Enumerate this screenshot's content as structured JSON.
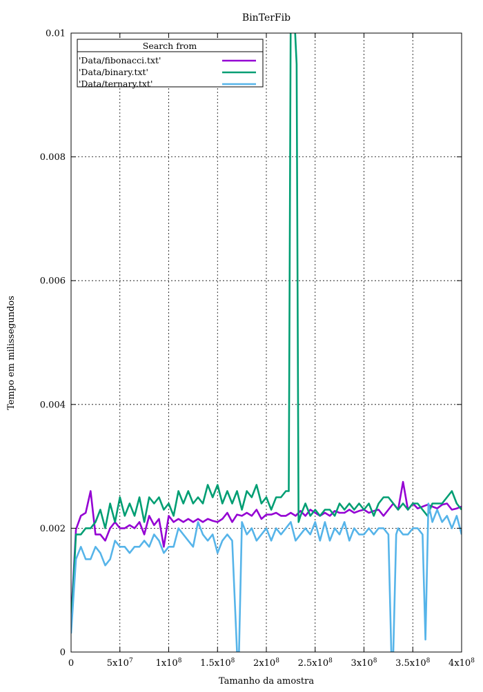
{
  "chart_data": {
    "type": "line",
    "title": "BinTerFib",
    "xlabel": "Tamanho da amostra",
    "ylabel": "Tempo em milissegundos",
    "xlim": [
      0,
      400000000
    ],
    "ylim": [
      0,
      0.01
    ],
    "grid": true,
    "legend_position": "top-left",
    "legend_title": "Search from",
    "x_ticks": [
      {
        "value": 0,
        "label": "0"
      },
      {
        "value": 50000000,
        "label": "5x10",
        "exp": "7"
      },
      {
        "value": 100000000,
        "label": "1x10",
        "exp": "8"
      },
      {
        "value": 150000000,
        "label": "1.5x10",
        "exp": "8"
      },
      {
        "value": 200000000,
        "label": "2x10",
        "exp": "8"
      },
      {
        "value": 250000000,
        "label": "2.5x10",
        "exp": "8"
      },
      {
        "value": 300000000,
        "label": "3x10",
        "exp": "8"
      },
      {
        "value": 350000000,
        "label": "3.5x10",
        "exp": "8"
      },
      {
        "value": 400000000,
        "label": "4x10",
        "exp": "8"
      }
    ],
    "y_ticks": [
      {
        "value": 0,
        "label": "0"
      },
      {
        "value": 0.002,
        "label": "0.002"
      },
      {
        "value": 0.004,
        "label": "0.004"
      },
      {
        "value": 0.006,
        "label": "0.006"
      },
      {
        "value": 0.008,
        "label": "0.008"
      },
      {
        "value": 0.01,
        "label": "0.01"
      }
    ],
    "series": [
      {
        "name": "'Data/fibonacci.txt'",
        "color": "#9400d3",
        "points": [
          [
            0,
            0.0005
          ],
          [
            5000000,
            0.00198
          ],
          [
            10000000,
            0.0022
          ],
          [
            15000000,
            0.00225
          ],
          [
            20000000,
            0.0026
          ],
          [
            25000000,
            0.0019
          ],
          [
            30000000,
            0.0019
          ],
          [
            35000000,
            0.0018
          ],
          [
            40000000,
            0.002
          ],
          [
            45000000,
            0.0021
          ],
          [
            50000000,
            0.002
          ],
          [
            55000000,
            0.002
          ],
          [
            60000000,
            0.00205
          ],
          [
            65000000,
            0.002
          ],
          [
            70000000,
            0.0021
          ],
          [
            75000000,
            0.0019
          ],
          [
            80000000,
            0.0022
          ],
          [
            85000000,
            0.00205
          ],
          [
            90000000,
            0.00215
          ],
          [
            95000000,
            0.0017
          ],
          [
            100000000,
            0.0022
          ],
          [
            105000000,
            0.0021
          ],
          [
            110000000,
            0.00215
          ],
          [
            115000000,
            0.0021
          ],
          [
            120000000,
            0.00215
          ],
          [
            125000000,
            0.0021
          ],
          [
            130000000,
            0.00215
          ],
          [
            135000000,
            0.0021
          ],
          [
            140000000,
            0.00215
          ],
          [
            145000000,
            0.00212
          ],
          [
            150000000,
            0.0021
          ],
          [
            155000000,
            0.00215
          ],
          [
            160000000,
            0.00225
          ],
          [
            165000000,
            0.0021
          ],
          [
            170000000,
            0.00222
          ],
          [
            175000000,
            0.0022
          ],
          [
            180000000,
            0.00225
          ],
          [
            185000000,
            0.0022
          ],
          [
            190000000,
            0.0023
          ],
          [
            195000000,
            0.00215
          ],
          [
            200000000,
            0.00222
          ],
          [
            205000000,
            0.00222
          ],
          [
            210000000,
            0.00225
          ],
          [
            215000000,
            0.0022
          ],
          [
            220000000,
            0.0022
          ],
          [
            225000000,
            0.00225
          ],
          [
            230000000,
            0.0022
          ],
          [
            235000000,
            0.00228
          ],
          [
            240000000,
            0.0022
          ],
          [
            245000000,
            0.0023
          ],
          [
            250000000,
            0.00225
          ],
          [
            255000000,
            0.0022
          ],
          [
            260000000,
            0.00225
          ],
          [
            265000000,
            0.0022
          ],
          [
            270000000,
            0.00228
          ],
          [
            275000000,
            0.00225
          ],
          [
            280000000,
            0.00225
          ],
          [
            285000000,
            0.0023
          ],
          [
            290000000,
            0.00225
          ],
          [
            295000000,
            0.00228
          ],
          [
            300000000,
            0.0023
          ],
          [
            305000000,
            0.00225
          ],
          [
            310000000,
            0.00228
          ],
          [
            315000000,
            0.0023
          ],
          [
            320000000,
            0.0022
          ],
          [
            325000000,
            0.0023
          ],
          [
            330000000,
            0.0024
          ],
          [
            335000000,
            0.0023
          ],
          [
            340000000,
            0.00275
          ],
          [
            345000000,
            0.0023
          ],
          [
            350000000,
            0.0024
          ],
          [
            355000000,
            0.00232
          ],
          [
            360000000,
            0.00235
          ],
          [
            365000000,
            0.00238
          ],
          [
            370000000,
            0.00235
          ],
          [
            375000000,
            0.00232
          ],
          [
            380000000,
            0.00238
          ],
          [
            385000000,
            0.0024
          ],
          [
            390000000,
            0.0023
          ],
          [
            395000000,
            0.00232
          ],
          [
            400000000,
            0.00235
          ]
        ]
      },
      {
        "name": "'Data/binary.txt'",
        "color": "#009e73",
        "points": [
          [
            0,
            0.0004
          ],
          [
            5000000,
            0.0019
          ],
          [
            10000000,
            0.0019
          ],
          [
            15000000,
            0.002
          ],
          [
            20000000,
            0.002
          ],
          [
            25000000,
            0.0021
          ],
          [
            30000000,
            0.0023
          ],
          [
            35000000,
            0.002
          ],
          [
            40000000,
            0.0024
          ],
          [
            45000000,
            0.0021
          ],
          [
            50000000,
            0.0025
          ],
          [
            55000000,
            0.0022
          ],
          [
            60000000,
            0.0024
          ],
          [
            65000000,
            0.0022
          ],
          [
            70000000,
            0.0025
          ],
          [
            75000000,
            0.0021
          ],
          [
            80000000,
            0.0025
          ],
          [
            85000000,
            0.0024
          ],
          [
            90000000,
            0.0025
          ],
          [
            95000000,
            0.0023
          ],
          [
            100000000,
            0.0024
          ],
          [
            105000000,
            0.0022
          ],
          [
            110000000,
            0.0026
          ],
          [
            115000000,
            0.0024
          ],
          [
            120000000,
            0.0026
          ],
          [
            125000000,
            0.0024
          ],
          [
            130000000,
            0.0025
          ],
          [
            135000000,
            0.0024
          ],
          [
            140000000,
            0.0027
          ],
          [
            145000000,
            0.0025
          ],
          [
            150000000,
            0.0027
          ],
          [
            155000000,
            0.0024
          ],
          [
            160000000,
            0.0026
          ],
          [
            165000000,
            0.0024
          ],
          [
            170000000,
            0.0026
          ],
          [
            175000000,
            0.0023
          ],
          [
            180000000,
            0.0026
          ],
          [
            185000000,
            0.0025
          ],
          [
            190000000,
            0.0027
          ],
          [
            195000000,
            0.0024
          ],
          [
            200000000,
            0.0025
          ],
          [
            205000000,
            0.0023
          ],
          [
            210000000,
            0.0025
          ],
          [
            215000000,
            0.0025
          ],
          [
            220000000,
            0.0026
          ],
          [
            223000000,
            0.0026
          ],
          [
            225000000,
            0.0105
          ],
          [
            228000000,
            0.0105
          ],
          [
            231000000,
            0.0095
          ],
          [
            233000000,
            0.0021
          ],
          [
            235000000,
            0.0022
          ],
          [
            240000000,
            0.0024
          ],
          [
            245000000,
            0.0022
          ],
          [
            250000000,
            0.0023
          ],
          [
            255000000,
            0.0022
          ],
          [
            260000000,
            0.0023
          ],
          [
            265000000,
            0.0023
          ],
          [
            270000000,
            0.0022
          ],
          [
            275000000,
            0.0024
          ],
          [
            280000000,
            0.0023
          ],
          [
            285000000,
            0.0024
          ],
          [
            290000000,
            0.0023
          ],
          [
            295000000,
            0.0024
          ],
          [
            300000000,
            0.0023
          ],
          [
            305000000,
            0.0024
          ],
          [
            310000000,
            0.0022
          ],
          [
            315000000,
            0.0024
          ],
          [
            320000000,
            0.0025
          ],
          [
            325000000,
            0.0025
          ],
          [
            330000000,
            0.0024
          ],
          [
            335000000,
            0.0023
          ],
          [
            340000000,
            0.0024
          ],
          [
            345000000,
            0.0023
          ],
          [
            350000000,
            0.0024
          ],
          [
            355000000,
            0.0024
          ],
          [
            360000000,
            0.0023
          ],
          [
            365000000,
            0.0022
          ],
          [
            370000000,
            0.0024
          ],
          [
            375000000,
            0.0024
          ],
          [
            380000000,
            0.0024
          ],
          [
            385000000,
            0.0025
          ],
          [
            390000000,
            0.0026
          ],
          [
            395000000,
            0.0024
          ],
          [
            400000000,
            0.0023
          ]
        ]
      },
      {
        "name": "'Data/ternary.txt'",
        "color": "#56b4e9",
        "points": [
          [
            0,
            0.0003
          ],
          [
            5000000,
            0.0015
          ],
          [
            10000000,
            0.0017
          ],
          [
            15000000,
            0.0015
          ],
          [
            20000000,
            0.0015
          ],
          [
            25000000,
            0.0017
          ],
          [
            30000000,
            0.0016
          ],
          [
            35000000,
            0.0014
          ],
          [
            40000000,
            0.0015
          ],
          [
            45000000,
            0.0018
          ],
          [
            50000000,
            0.0017
          ],
          [
            55000000,
            0.0017
          ],
          [
            60000000,
            0.0016
          ],
          [
            65000000,
            0.0017
          ],
          [
            70000000,
            0.0017
          ],
          [
            75000000,
            0.0018
          ],
          [
            80000000,
            0.0017
          ],
          [
            85000000,
            0.0019
          ],
          [
            90000000,
            0.0018
          ],
          [
            95000000,
            0.0016
          ],
          [
            100000000,
            0.0017
          ],
          [
            105000000,
            0.0017
          ],
          [
            110000000,
            0.002
          ],
          [
            115000000,
            0.0019
          ],
          [
            120000000,
            0.0018
          ],
          [
            125000000,
            0.0017
          ],
          [
            130000000,
            0.0021
          ],
          [
            135000000,
            0.0019
          ],
          [
            140000000,
            0.0018
          ],
          [
            145000000,
            0.0019
          ],
          [
            150000000,
            0.0016
          ],
          [
            155000000,
            0.0018
          ],
          [
            160000000,
            0.0019
          ],
          [
            165000000,
            0.0018
          ],
          [
            170000000,
            0.0
          ],
          [
            172000000,
            0.0
          ],
          [
            175000000,
            0.0021
          ],
          [
            180000000,
            0.0019
          ],
          [
            185000000,
            0.002
          ],
          [
            190000000,
            0.0018
          ],
          [
            195000000,
            0.0019
          ],
          [
            200000000,
            0.002
          ],
          [
            205000000,
            0.0018
          ],
          [
            210000000,
            0.002
          ],
          [
            215000000,
            0.0019
          ],
          [
            220000000,
            0.002
          ],
          [
            225000000,
            0.0021
          ],
          [
            230000000,
            0.0018
          ],
          [
            235000000,
            0.0019
          ],
          [
            240000000,
            0.002
          ],
          [
            245000000,
            0.0019
          ],
          [
            250000000,
            0.0021
          ],
          [
            255000000,
            0.0018
          ],
          [
            260000000,
            0.0021
          ],
          [
            265000000,
            0.0018
          ],
          [
            270000000,
            0.002
          ],
          [
            275000000,
            0.0019
          ],
          [
            280000000,
            0.0021
          ],
          [
            285000000,
            0.0018
          ],
          [
            290000000,
            0.002
          ],
          [
            295000000,
            0.0019
          ],
          [
            300000000,
            0.0019
          ],
          [
            305000000,
            0.002
          ],
          [
            310000000,
            0.0019
          ],
          [
            315000000,
            0.002
          ],
          [
            320000000,
            0.002
          ],
          [
            325000000,
            0.0019
          ],
          [
            328000000,
            0.0
          ],
          [
            330000000,
            0.0
          ],
          [
            333000000,
            0.0019
          ],
          [
            335000000,
            0.002
          ],
          [
            340000000,
            0.0019
          ],
          [
            345000000,
            0.0019
          ],
          [
            350000000,
            0.002
          ],
          [
            355000000,
            0.002
          ],
          [
            360000000,
            0.0019
          ],
          [
            363000000,
            0.0002
          ],
          [
            366000000,
            0.0024
          ],
          [
            370000000,
            0.0021
          ],
          [
            375000000,
            0.0023
          ],
          [
            380000000,
            0.0021
          ],
          [
            385000000,
            0.0022
          ],
          [
            390000000,
            0.002
          ],
          [
            395000000,
            0.0022
          ],
          [
            400000000,
            0.0019
          ]
        ]
      }
    ]
  }
}
